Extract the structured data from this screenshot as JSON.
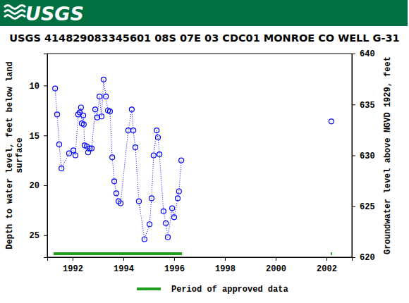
{
  "chart_data": {
    "type": "line",
    "logo_text": "USGS",
    "title": "USGS 414829083345601 08S 07E 03 CDC01 MONROE CO WELL G-31",
    "y_label": [
      "Depth to water level, feet below land",
      "surface"
    ],
    "y2_label": "Groundwater level above NGVD 1929, feet",
    "x": [
      1991.31,
      1991.39,
      1991.47,
      1991.56,
      1991.86,
      1992.03,
      1992.11,
      1992.22,
      1992.28,
      1992.33,
      1992.36,
      1992.42,
      1992.44,
      1992.47,
      1992.56,
      1992.61,
      1992.67,
      1992.75,
      1992.89,
      1992.97,
      1993.06,
      1993.14,
      1993.22,
      1993.31,
      1993.39,
      1993.47,
      1993.56,
      1993.64,
      1993.72,
      1993.81,
      1993.89,
      1994.19,
      1994.33,
      1994.39,
      1994.47,
      1994.61,
      1994.83,
      1995.03,
      1995.11,
      1995.19,
      1995.31,
      1995.36,
      1995.42,
      1995.58,
      1995.67,
      1995.75,
      1995.92,
      1996.0,
      1996.14,
      1996.19,
      1996.28,
      null,
      2002.19
    ],
    "series": [
      {
        "color": "#0000ff",
        "marker": "circle",
        "line_style": "dotted",
        "values": [
          10.3,
          12.9,
          15.9,
          18.3,
          16.8,
          16.5,
          17.0,
          12.9,
          12.7,
          12.2,
          13.8,
          13.0,
          13.9,
          16.0,
          16.1,
          16.7,
          16.3,
          16.3,
          12.4,
          13.2,
          11.1,
          13.1,
          9.4,
          11.1,
          12.5,
          12.6,
          17.2,
          19.6,
          20.8,
          21.6,
          21.8,
          14.5,
          12.4,
          14.5,
          16.2,
          21.6,
          25.4,
          23.9,
          21.3,
          17.0,
          14.5,
          15.2,
          16.9,
          22.6,
          23.8,
          25.2,
          22.3,
          23.2,
          21.3,
          20.6,
          17.5,
          null,
          13.6
        ]
      }
    ],
    "approved_data": {
      "name": "Period of approved data",
      "color": "#1ea01e",
      "ranges": [
        [
          1991.25,
          1996.31
        ],
        [
          2002.17,
          2002.22
        ]
      ]
    },
    "xlim": [
      1991,
      2003
    ],
    "xticks": [
      1992,
      1994,
      1996,
      1998,
      2000,
      2002
    ],
    "ylim": [
      27.2,
      6.8
    ],
    "yticks": [
      10,
      15,
      20,
      25
    ],
    "y2lim": [
      620,
      640
    ],
    "y2ticks": [
      620,
      625,
      630,
      635,
      640
    ],
    "grid": false,
    "legend": "bottom"
  }
}
